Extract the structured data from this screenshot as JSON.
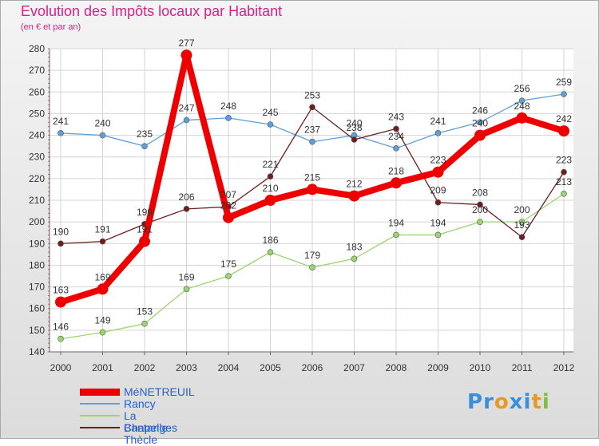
{
  "chart_data": {
    "type": "line",
    "title": "Evolution des Impôts locaux par Habitant",
    "subtitle": "(en € et par an)",
    "xlabel": "",
    "ylabel": "",
    "ylim": [
      140,
      280
    ],
    "y_ticks": [
      140,
      150,
      160,
      170,
      180,
      190,
      200,
      210,
      220,
      230,
      240,
      250,
      260,
      270,
      280
    ],
    "categories": [
      "2000",
      "2001",
      "2002",
      "2003",
      "2004",
      "2005",
      "2006",
      "2007",
      "2008",
      "2009",
      "2010",
      "2011",
      "2012"
    ],
    "grid": true,
    "legend_position": "bottom-left",
    "series": [
      {
        "name": "MéNETREUIL",
        "color": "#ee0000",
        "values": [
          163,
          169,
          191,
          277,
          202,
          210,
          215,
          212,
          218,
          223,
          240,
          248,
          242
        ]
      },
      {
        "name": "Rancy",
        "color": "#5f9fd5",
        "values": [
          241,
          240,
          235,
          247,
          248,
          245,
          237,
          240,
          234,
          241,
          246,
          256,
          259
        ]
      },
      {
        "name": "La Chapelle-Thècle",
        "color": "#9ad56f",
        "values": [
          146,
          149,
          153,
          169,
          175,
          186,
          179,
          183,
          194,
          194,
          200,
          200,
          213
        ]
      },
      {
        "name": "Bantanges",
        "color": "#6b1f1f",
        "values": [
          190,
          191,
          199,
          206,
          207,
          221,
          253,
          238,
          243,
          209,
          208,
          193,
          223
        ]
      }
    ]
  },
  "logo": {
    "letters": [
      {
        "char": "P",
        "color": "#3a8fd8"
      },
      {
        "char": "r",
        "color": "#3a8fd8"
      },
      {
        "char": "o",
        "color": "#e59a24"
      },
      {
        "char": "x",
        "color": "#3a8fd8"
      },
      {
        "char": "i",
        "color": "#3a8fd8"
      },
      {
        "char": "t",
        "color": "#e59a24"
      },
      {
        "char": "i",
        "color": "#7ec03a"
      }
    ]
  }
}
